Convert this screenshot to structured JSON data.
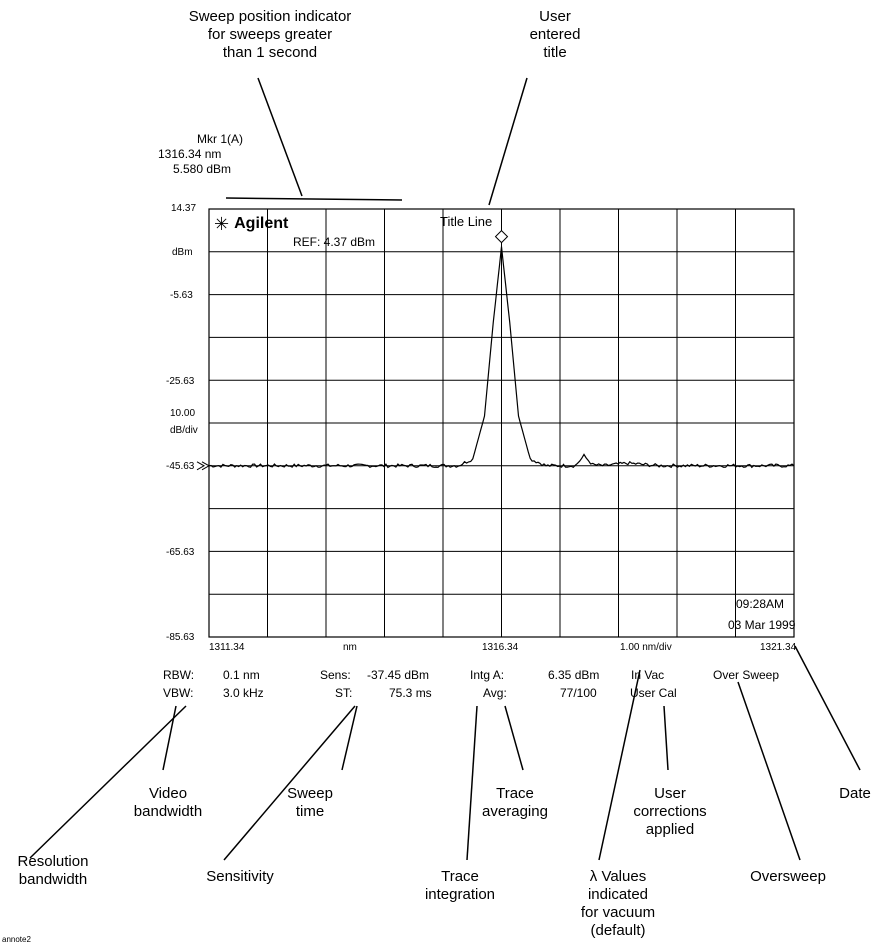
{
  "callouts": {
    "sweep_indicator": [
      "Sweep position indicator",
      "for sweeps greater",
      "than 1 second"
    ],
    "user_title": [
      "User",
      "entered",
      "title"
    ],
    "video_bw": [
      "Video",
      "bandwidth"
    ],
    "sweep_time": [
      "Sweep",
      "time"
    ],
    "trace_avg": [
      "Trace",
      "averaging"
    ],
    "user_corr": [
      "User",
      "corrections",
      "applied"
    ],
    "date": [
      "Date"
    ],
    "resolution_bw": [
      "Resolution",
      "bandwidth"
    ],
    "sensitivity": [
      "Sensitivity"
    ],
    "trace_integ": [
      "Trace",
      "integration"
    ],
    "lambda_vac": [
      "λ Values",
      "indicated",
      "for vacuum",
      "(default)"
    ],
    "oversweep": [
      "Oversweep"
    ]
  },
  "marker": {
    "line1": "Mkr 1(A)",
    "line2": "1316.34 nm",
    "line3": "5.580 dBm"
  },
  "screen": {
    "logo_text": "Agilent",
    "ref_text": "REF: 4.37 dBm",
    "title_line": "Title Line",
    "time": "09:28AM",
    "date": "03 Mar 1999",
    "left_labels": {
      "top": "14.37",
      "unit": "dBm",
      "l2": "-5.63",
      "l3": "-25.63",
      "scale": "10.00",
      "scale_unit": "dB/div",
      "l4": "-45.63",
      "l5": "-65.63",
      "l6": "-85.63"
    },
    "bottom_labels": {
      "start": "1311.34",
      "unit": "nm",
      "center": "1316.34",
      "span": "1.00 nm/div",
      "stop": "1321.34"
    }
  },
  "status": {
    "rbw_label": "RBW:",
    "rbw_val": "0.1 nm",
    "vbw_label": "VBW:",
    "vbw_val": "3.0 kHz",
    "sens_label": "Sens:",
    "sens_val": "-37.45 dBm",
    "st_label": "ST:",
    "st_val": "75.3 ms",
    "intg_label": "Intg A:",
    "intg_val": "6.35 dBm",
    "avg_label": "Avg:",
    "avg_val": "77/100",
    "invac": "In Vac",
    "usercal": "User Cal",
    "oversweep": "Over Sweep"
  },
  "footer": "annote2",
  "chart_data": {
    "type": "line",
    "title": "Title Line",
    "xlabel": "nm",
    "ylabel": "dBm",
    "xlim": [
      1311.34,
      1321.34
    ],
    "ylim": [
      -85.63,
      14.37
    ],
    "series": [
      {
        "x": [
          1311.34,
          1313.0,
          1314.5,
          1315.6,
          1315.85,
          1316.05,
          1316.2,
          1316.34,
          1316.48,
          1316.63,
          1316.83,
          1317.1,
          1317.6,
          1317.75,
          1317.9,
          1318.1,
          1318.5,
          1319.0,
          1320.0,
          1321.34
        ],
        "y": [
          -45.6,
          -45.6,
          -45.6,
          -45.6,
          -44.0,
          -34.0,
          -12.0,
          5.58,
          -12.0,
          -34.0,
          -44.0,
          -45.6,
          -45.6,
          -43.3,
          -45.4,
          -45.6,
          -45.0,
          -45.6,
          -45.6,
          -45.6
        ]
      }
    ]
  }
}
